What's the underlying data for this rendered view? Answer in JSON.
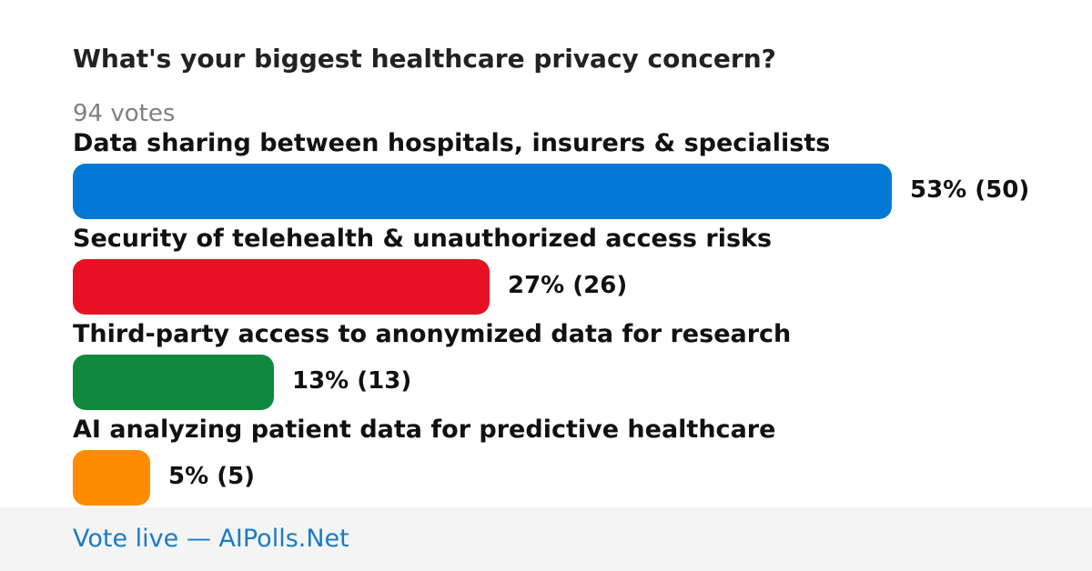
{
  "poll": {
    "question": "What's your biggest healthcare privacy concern?",
    "votes_label": "94 votes"
  },
  "chart_data": {
    "type": "bar",
    "orientation": "horizontal",
    "categories": [
      "Data sharing between hospitals, insurers & specialists",
      "Security of telehealth & unauthorized access risks",
      "Third-party access to anonymized data for research",
      "AI analyzing patient data for predictive healthcare"
    ],
    "values": [
      53,
      27,
      13,
      5
    ],
    "counts": [
      50,
      26,
      13,
      5
    ],
    "value_labels": [
      "53% (50)",
      "27% (26)",
      "13% (13)",
      "5% (5)"
    ],
    "colors": [
      "#0078d4",
      "#e81123",
      "#10893e",
      "#ff8c00"
    ],
    "title": "What's your biggest healthcare privacy concern?",
    "xlabel": "",
    "ylabel": "",
    "xlim": [
      0,
      53
    ]
  },
  "footer": {
    "link_text": "Vote live — AIPolls.Net"
  }
}
